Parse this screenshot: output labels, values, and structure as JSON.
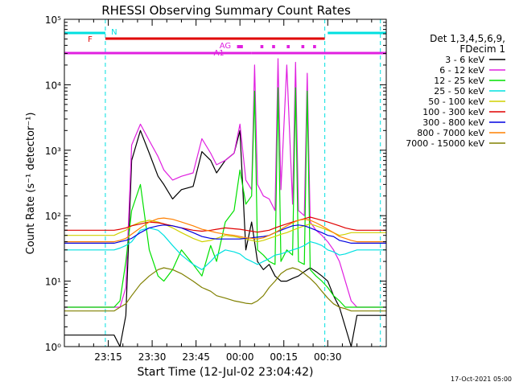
{
  "chart_data": {
    "type": "line",
    "title": "RHESSI Observing Summary Count Rates",
    "xlabel": "Start Time (12-Jul-02 23:04:42)",
    "ylabel": "Count Rate (s⁻¹ detector⁻¹)",
    "y_scale": "log",
    "ylim": [
      1,
      100000
    ],
    "y_ticks": [
      {
        "value": 1,
        "label": "10⁰"
      },
      {
        "value": 10,
        "label": "10¹"
      },
      {
        "value": 100,
        "label": "10²"
      },
      {
        "value": 1000,
        "label": "10³"
      },
      {
        "value": 10000,
        "label": "10⁴"
      },
      {
        "value": 100000,
        "label": "10⁵"
      }
    ],
    "x_ticks": [
      "23:15",
      "23:30",
      "23:45",
      "00:00",
      "00:15",
      "00:30"
    ],
    "xlim_minutes": [
      -4,
      106
    ],
    "x_tick_minutes": [
      11,
      26,
      41,
      56,
      71,
      86
    ],
    "grid": false,
    "legend_title": [
      "Det 1,3,4,5,6,9,",
      "FDecim 1"
    ],
    "legend_position": "right",
    "series": [
      {
        "name": "3 - 6 keV",
        "color": "#000000",
        "x": [
          -4,
          10,
          13,
          15,
          17,
          19,
          22,
          25,
          28,
          30,
          33,
          36,
          40,
          43,
          46,
          48,
          51,
          54,
          56,
          58,
          60,
          62,
          64,
          66,
          68,
          70,
          72,
          74,
          76,
          78,
          80,
          82,
          84,
          86,
          88,
          90,
          92,
          94,
          96,
          98,
          100,
          102,
          104,
          106
        ],
        "y": [
          1.5,
          1.5,
          1.5,
          1,
          3,
          700,
          2000,
          900,
          400,
          300,
          180,
          250,
          280,
          950,
          700,
          450,
          700,
          900,
          2000,
          30,
          80,
          20,
          15,
          18,
          12,
          10,
          10,
          11,
          12,
          14,
          16,
          14,
          12,
          10,
          6,
          4,
          2,
          1,
          3,
          3,
          3,
          3,
          3,
          3
        ]
      },
      {
        "name": "6 - 12 keV",
        "color": "#e020e0",
        "x": [
          -4,
          10,
          13,
          15,
          17,
          19,
          22,
          25,
          28,
          30,
          33,
          36,
          40,
          43,
          46,
          48,
          51,
          54,
          56,
          58,
          60,
          61,
          62,
          64,
          66,
          68,
          69,
          70,
          72,
          74,
          75,
          76,
          78,
          79,
          80,
          82,
          84,
          86,
          88,
          90,
          92,
          94,
          96,
          98,
          100,
          102,
          104,
          106
        ],
        "y": [
          4,
          4,
          4,
          4,
          8,
          1200,
          2500,
          1400,
          800,
          500,
          350,
          400,
          450,
          1500,
          900,
          600,
          700,
          900,
          2500,
          350,
          250,
          20000,
          300,
          200,
          180,
          120,
          25000,
          250,
          20000,
          150,
          22000,
          120,
          100,
          15000,
          80,
          60,
          50,
          40,
          30,
          20,
          10,
          5,
          4,
          4,
          4,
          4,
          4,
          4
        ]
      },
      {
        "name": "12 - 25 keV",
        "color": "#00e000",
        "x": [
          -4,
          10,
          13,
          15,
          17,
          19,
          22,
          25,
          28,
          30,
          33,
          36,
          40,
          43,
          46,
          48,
          51,
          54,
          56,
          58,
          60,
          61,
          62,
          64,
          66,
          68,
          69,
          70,
          72,
          74,
          75,
          76,
          78,
          79,
          80,
          82,
          84,
          86,
          88,
          90,
          92,
          94,
          96,
          98,
          100,
          102,
          104,
          106
        ],
        "y": [
          4,
          4,
          4,
          5,
          20,
          120,
          300,
          30,
          12,
          10,
          15,
          30,
          18,
          12,
          35,
          20,
          80,
          120,
          500,
          150,
          200,
          8000,
          30,
          25,
          20,
          18,
          9000,
          20,
          30,
          25,
          9000,
          20,
          18,
          8000,
          15,
          12,
          10,
          8,
          6,
          5,
          4,
          4,
          4,
          4,
          4,
          4,
          4,
          4
        ]
      },
      {
        "name": "25 - 50 keV",
        "color": "#00e0e0",
        "x": [
          -4,
          10,
          13,
          15,
          17,
          19,
          22,
          25,
          28,
          30,
          33,
          36,
          40,
          43,
          46,
          48,
          51,
          54,
          56,
          58,
          60,
          62,
          64,
          66,
          68,
          70,
          72,
          74,
          76,
          78,
          80,
          82,
          84,
          86,
          88,
          90,
          92,
          94,
          96,
          98,
          100,
          102,
          104,
          106
        ],
        "y": [
          30,
          30,
          30,
          32,
          35,
          40,
          60,
          65,
          60,
          50,
          35,
          25,
          18,
          15,
          20,
          25,
          30,
          28,
          26,
          22,
          20,
          18,
          20,
          22,
          25,
          26,
          28,
          30,
          32,
          35,
          40,
          38,
          35,
          30,
          28,
          25,
          26,
          28,
          30,
          30,
          30,
          30,
          30,
          30
        ]
      },
      {
        "name": "50 - 100 keV",
        "color": "#d0d000",
        "x": [
          -4,
          10,
          13,
          15,
          17,
          19,
          22,
          25,
          28,
          30,
          33,
          36,
          40,
          43,
          46,
          48,
          51,
          54,
          56,
          58,
          60,
          62,
          64,
          66,
          68,
          70,
          72,
          74,
          76,
          78,
          80,
          82,
          84,
          86,
          88,
          90,
          92,
          94,
          96,
          98,
          100,
          102,
          104,
          106
        ],
        "y": [
          50,
          50,
          50,
          55,
          60,
          70,
          80,
          85,
          80,
          75,
          65,
          55,
          45,
          40,
          42,
          45,
          50,
          48,
          46,
          44,
          42,
          40,
          42,
          45,
          48,
          52,
          55,
          60,
          65,
          70,
          75,
          70,
          65,
          60,
          55,
          50,
          52,
          55,
          55,
          55,
          55,
          55,
          55,
          55
        ]
      },
      {
        "name": "100 - 300 keV",
        "color": "#e00000",
        "x": [
          -4,
          10,
          13,
          15,
          17,
          19,
          22,
          25,
          28,
          30,
          33,
          36,
          40,
          43,
          46,
          48,
          51,
          54,
          56,
          58,
          60,
          62,
          64,
          66,
          68,
          70,
          72,
          74,
          76,
          78,
          80,
          82,
          84,
          86,
          88,
          90,
          92,
          94,
          96,
          98,
          100,
          102,
          104,
          106
        ],
        "y": [
          60,
          60,
          60,
          62,
          65,
          70,
          75,
          80,
          78,
          75,
          70,
          65,
          60,
          58,
          60,
          62,
          65,
          63,
          62,
          60,
          58,
          56,
          58,
          60,
          65,
          70,
          75,
          80,
          85,
          90,
          95,
          90,
          85,
          80,
          75,
          70,
          65,
          62,
          60,
          60,
          60,
          60,
          60,
          60
        ]
      },
      {
        "name": "300 - 800 keV",
        "color": "#0000e0",
        "x": [
          -4,
          10,
          13,
          15,
          17,
          19,
          22,
          25,
          28,
          30,
          33,
          36,
          40,
          43,
          46,
          48,
          51,
          54,
          56,
          58,
          60,
          62,
          64,
          66,
          68,
          70,
          72,
          74,
          76,
          78,
          80,
          82,
          84,
          86,
          88,
          90,
          92,
          94,
          96,
          98,
          100,
          102,
          104,
          106
        ],
        "y": [
          38,
          38,
          38,
          40,
          42,
          45,
          55,
          65,
          70,
          72,
          70,
          65,
          55,
          48,
          45,
          44,
          44,
          44,
          44,
          45,
          46,
          47,
          48,
          50,
          55,
          60,
          65,
          70,
          72,
          70,
          65,
          60,
          55,
          50,
          48,
          42,
          40,
          38,
          38,
          38,
          38,
          38,
          38,
          38
        ]
      },
      {
        "name": "800 - 7000 keV",
        "color": "#ff8000",
        "x": [
          -4,
          10,
          13,
          15,
          17,
          19,
          22,
          25,
          28,
          30,
          33,
          36,
          40,
          43,
          46,
          48,
          51,
          54,
          56,
          58,
          60,
          62,
          64,
          66,
          68,
          70,
          72,
          74,
          76,
          78,
          80,
          82,
          84,
          86,
          88,
          90,
          92,
          94,
          96,
          98,
          100,
          102,
          104,
          106
        ],
        "y": [
          40,
          40,
          40,
          42,
          45,
          52,
          65,
          80,
          90,
          92,
          88,
          80,
          70,
          62,
          58,
          55,
          52,
          50,
          48,
          46,
          45,
          44,
          46,
          50,
          55,
          62,
          70,
          78,
          85,
          88,
          85,
          78,
          70,
          62,
          55,
          48,
          45,
          42,
          40,
          40,
          40,
          40,
          40,
          40
        ]
      },
      {
        "name": "7000 - 15000 keV",
        "color": "#808000",
        "x": [
          -4,
          10,
          13,
          15,
          17,
          19,
          22,
          25,
          28,
          30,
          33,
          36,
          40,
          43,
          46,
          48,
          51,
          54,
          56,
          58,
          60,
          62,
          64,
          66,
          68,
          70,
          72,
          74,
          76,
          78,
          80,
          82,
          84,
          86,
          88,
          90,
          92,
          94,
          96,
          98,
          100,
          102,
          104,
          106
        ],
        "y": [
          3.5,
          3.5,
          3.5,
          4,
          4.5,
          6,
          9,
          12,
          15,
          16,
          15,
          13,
          10,
          8,
          7,
          6,
          5.5,
          5,
          4.8,
          4.6,
          4.5,
          5,
          6,
          8,
          10,
          13,
          15,
          16,
          15,
          13,
          11,
          9,
          7,
          5.5,
          4.5,
          4,
          3.8,
          3.5,
          3.5,
          3.5,
          3.5,
          3.5,
          3.5,
          3.5
        ]
      }
    ],
    "annotations": [
      {
        "label": "N",
        "color": "#00e0e0"
      },
      {
        "label": "F",
        "color": "#e00000"
      },
      {
        "label": "AG",
        "color": "#e020e0"
      },
      {
        "label": "A1",
        "color": "#e020e0"
      }
    ],
    "flag_bars": [
      {
        "name": "N",
        "color": "#00e0e0",
        "segments": [
          [
            -4,
            10
          ],
          [
            86,
            106
          ]
        ]
      },
      {
        "name": "F",
        "color": "#e00000",
        "segments": [
          [
            10,
            85
          ]
        ]
      },
      {
        "name": "AG",
        "color": "#e020e0",
        "segments": [
          [
            55,
            57
          ],
          [
            63,
            64
          ],
          [
            67,
            68
          ],
          [
            72,
            73
          ],
          [
            77,
            78
          ],
          [
            81,
            82
          ]
        ]
      },
      {
        "name": "A1",
        "color": "#e020e0",
        "segments": [
          [
            -4,
            60
          ],
          [
            60,
            106
          ]
        ]
      }
    ],
    "vlines_minutes": [
      10,
      85,
      104
    ]
  },
  "footer": {
    "date_stamp": "17-Oct-2021 05:00"
  }
}
